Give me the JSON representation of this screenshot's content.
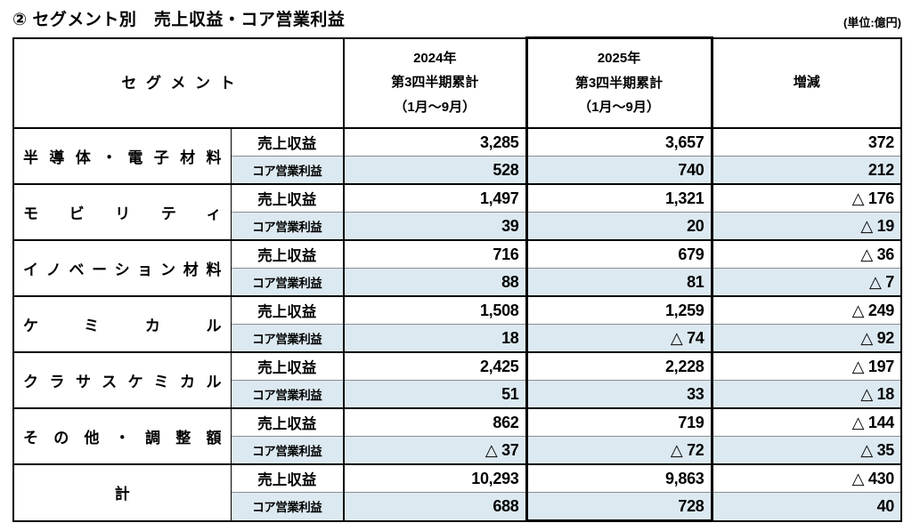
{
  "title": "② セグメント別　売上収益・コア営業利益",
  "unit_note": "(単位:億円)",
  "table": {
    "headers": {
      "segment": "セグメント",
      "col_2024": "2024年\n第3四半期累計\n（1月～9月）",
      "col_2025": "2025年\n第3四半期累計\n（1月～9月）",
      "diff": "増減"
    },
    "row_labels": {
      "revenue": "売上収益",
      "core_profit": "コア営業利益"
    },
    "segments": [
      {
        "name": "半導体・電子材料",
        "revenue": {
          "y2024": "3,285",
          "y2025": "3,657",
          "diff": "372"
        },
        "core_profit": {
          "y2024": "528",
          "y2025": "740",
          "diff": "212"
        }
      },
      {
        "name": "モビリティ",
        "revenue": {
          "y2024": "1,497",
          "y2025": "1,321",
          "diff": "△ 176"
        },
        "core_profit": {
          "y2024": "39",
          "y2025": "20",
          "diff": "△ 19"
        }
      },
      {
        "name": "イノベーション材料",
        "revenue": {
          "y2024": "716",
          "y2025": "679",
          "diff": "△ 36"
        },
        "core_profit": {
          "y2024": "88",
          "y2025": "81",
          "diff": "△ 7"
        }
      },
      {
        "name": "ケミカル",
        "revenue": {
          "y2024": "1,508",
          "y2025": "1,259",
          "diff": "△ 249"
        },
        "core_profit": {
          "y2024": "18",
          "y2025": "△ 74",
          "diff": "△ 92"
        }
      },
      {
        "name": "クラサスケミカル",
        "revenue": {
          "y2024": "2,425",
          "y2025": "2,228",
          "diff": "△ 197"
        },
        "core_profit": {
          "y2024": "51",
          "y2025": "33",
          "diff": "△ 18"
        }
      },
      {
        "name": "その他・調整額",
        "revenue": {
          "y2024": "862",
          "y2025": "719",
          "diff": "△ 144"
        },
        "core_profit": {
          "y2024": "△ 37",
          "y2025": "△ 72",
          "diff": "△ 35"
        }
      },
      {
        "name": "計",
        "revenue": {
          "y2024": "10,293",
          "y2025": "9,863",
          "diff": "△ 430"
        },
        "core_profit": {
          "y2024": "688",
          "y2025": "728",
          "diff": "40"
        }
      }
    ],
    "colors": {
      "profit_row_bg": "#dce9f1",
      "border_black": "#000000",
      "hairline_gray": "#8c8c8c"
    }
  }
}
